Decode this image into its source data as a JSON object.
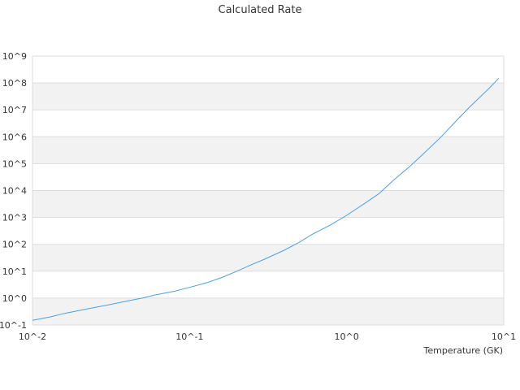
{
  "chart_data": {
    "type": "line",
    "title": "Calculated Rate",
    "xlabel": "Temperature (GK)",
    "ylabel": "",
    "x_scale": "log",
    "y_scale": "log",
    "xlim": [
      0.01,
      10
    ],
    "ylim": [
      0.1,
      1000000000
    ],
    "x_ticks": [
      {
        "value": 0.01,
        "label": "10^-2"
      },
      {
        "value": 0.1,
        "label": "10^-1"
      },
      {
        "value": 1,
        "label": "10^0"
      },
      {
        "value": 10,
        "label": "10^1"
      }
    ],
    "y_ticks": [
      {
        "value": 0.1,
        "label": "10^-1"
      },
      {
        "value": 1,
        "label": "10^0"
      },
      {
        "value": 10,
        "label": "10^1"
      },
      {
        "value": 100,
        "label": "10^2"
      },
      {
        "value": 1000,
        "label": "10^3"
      },
      {
        "value": 10000,
        "label": "10^4"
      },
      {
        "value": 100000,
        "label": "10^5"
      },
      {
        "value": 1000000,
        "label": "10^6"
      },
      {
        "value": 10000000,
        "label": "10^7"
      },
      {
        "value": 100000000,
        "label": "10^8"
      },
      {
        "value": 1000000000,
        "label": "10^9"
      }
    ],
    "grid": "alternating horizontal bands",
    "colors": {
      "line": "#4a9fe8",
      "band": "#f2f2f2",
      "grid": "#dddddd"
    },
    "series": [
      {
        "x": [
          0.01,
          0.013,
          0.016,
          0.02,
          0.025,
          0.03,
          0.04,
          0.05,
          0.06,
          0.08,
          0.1,
          0.13,
          0.16,
          0.2,
          0.25,
          0.3,
          0.4,
          0.5,
          0.6,
          0.8,
          1,
          1.3,
          1.6,
          2,
          2.5,
          3,
          4,
          5,
          6,
          8,
          9.3
        ],
        "y": [
          0.15,
          0.2,
          0.27,
          0.35,
          0.45,
          0.55,
          0.78,
          1.0,
          1.3,
          1.8,
          2.5,
          3.8,
          5.8,
          10,
          18,
          28,
          60,
          120,
          230,
          550,
          1200,
          3300,
          7500,
          25000,
          75000,
          200000,
          1000000,
          4000000,
          12000000,
          60000000,
          150000000
        ]
      }
    ]
  }
}
